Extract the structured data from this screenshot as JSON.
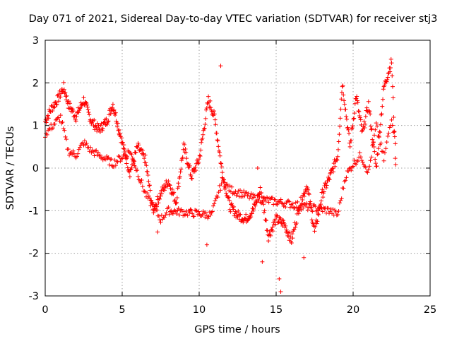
{
  "chart_data": {
    "type": "scatter",
    "title": "Day 071 of 2021, Sidereal Day-to-day VTEC variation (SDTVAR) for receiver stj3",
    "xlabel": "GPS time / hours",
    "ylabel": "SDTVAR / TECUs",
    "xlim": [
      0,
      25
    ],
    "ylim": [
      -3,
      3
    ],
    "xticks": [
      "0",
      "5",
      "10",
      "15",
      "20",
      "25"
    ],
    "yticks": [
      "-3",
      "-2",
      "-1",
      "0",
      "1",
      "2",
      "3"
    ],
    "grid": true,
    "marker": "+",
    "color": "#ff0000",
    "trace_control_points": [
      [
        0.0,
        1.1
      ],
      [
        0.4,
        1.4
      ],
      [
        0.8,
        1.6
      ],
      [
        1.2,
        1.9
      ],
      [
        1.5,
        1.5
      ],
      [
        2.0,
        1.2
      ],
      [
        2.5,
        1.6
      ],
      [
        3.0,
        1.1
      ],
      [
        3.5,
        0.9
      ],
      [
        4.0,
        1.1
      ],
      [
        4.4,
        1.5
      ],
      [
        5.0,
        0.6
      ],
      [
        5.5,
        -0.1
      ],
      [
        6.0,
        0.5
      ],
      [
        6.5,
        0.2
      ],
      [
        7.0,
        -1.0
      ],
      [
        7.5,
        -0.6
      ],
      [
        8.0,
        -0.3
      ],
      [
        8.5,
        -0.8
      ],
      [
        9.0,
        0.5
      ],
      [
        9.5,
        -0.2
      ],
      [
        10.0,
        0.2
      ],
      [
        10.6,
        1.6
      ],
      [
        11.0,
        1.2
      ],
      [
        11.5,
        -0.1
      ],
      [
        12.0,
        -0.9
      ],
      [
        12.5,
        -1.1
      ],
      [
        13.0,
        -1.2
      ],
      [
        13.5,
        -1.0
      ],
      [
        14.0,
        -0.5
      ],
      [
        14.5,
        -1.6
      ],
      [
        15.0,
        -1.2
      ],
      [
        15.5,
        -1.3
      ],
      [
        16.0,
        -1.7
      ],
      [
        16.5,
        -0.9
      ],
      [
        17.0,
        -0.4
      ],
      [
        17.5,
        -1.5
      ],
      [
        18.0,
        -0.6
      ],
      [
        18.5,
        -0.2
      ],
      [
        19.0,
        0.3
      ],
      [
        19.3,
        2.0
      ],
      [
        19.8,
        0.5
      ],
      [
        20.2,
        1.7
      ],
      [
        20.6,
        0.8
      ],
      [
        21.0,
        1.5
      ],
      [
        21.5,
        0.0
      ],
      [
        22.0,
        1.9
      ],
      [
        22.5,
        2.5
      ],
      [
        22.8,
        -0.3
      ]
    ],
    "secondary_trace_control_points": [
      [
        0.0,
        0.8
      ],
      [
        0.5,
        1.0
      ],
      [
        1.0,
        1.2
      ],
      [
        1.5,
        0.4
      ],
      [
        2.0,
        0.3
      ],
      [
        2.5,
        0.6
      ],
      [
        3.0,
        0.4
      ],
      [
        3.5,
        0.3
      ],
      [
        4.0,
        0.2
      ],
      [
        4.4,
        0.1
      ],
      [
        5.5,
        0.4
      ],
      [
        6.5,
        -0.6
      ],
      [
        7.5,
        -1.2
      ],
      [
        8.0,
        -1.0
      ],
      [
        10.8,
        -1.1
      ],
      [
        11.5,
        -0.3
      ],
      [
        12.0,
        -0.5
      ],
      [
        13.5,
        -0.7
      ],
      [
        18.5,
        -1.0
      ],
      [
        19.0,
        -1.1
      ],
      [
        19.5,
        -0.2
      ],
      [
        20.0,
        0.1
      ],
      [
        20.5,
        0.3
      ],
      [
        21.0,
        -0.1
      ],
      [
        21.5,
        1.0
      ],
      [
        22.0,
        0.2
      ],
      [
        22.5,
        1.2
      ],
      [
        22.8,
        0.5
      ]
    ],
    "scattered_points": [
      [
        11.4,
        2.4
      ],
      [
        13.8,
        0.0
      ],
      [
        14.1,
        -2.2
      ],
      [
        15.2,
        -2.6
      ],
      [
        15.3,
        -2.9
      ],
      [
        10.5,
        -1.8
      ],
      [
        4.8,
        0.8
      ],
      [
        9.4,
        -1.0
      ],
      [
        16.8,
        -2.1
      ],
      [
        7.3,
        -1.5
      ]
    ]
  }
}
